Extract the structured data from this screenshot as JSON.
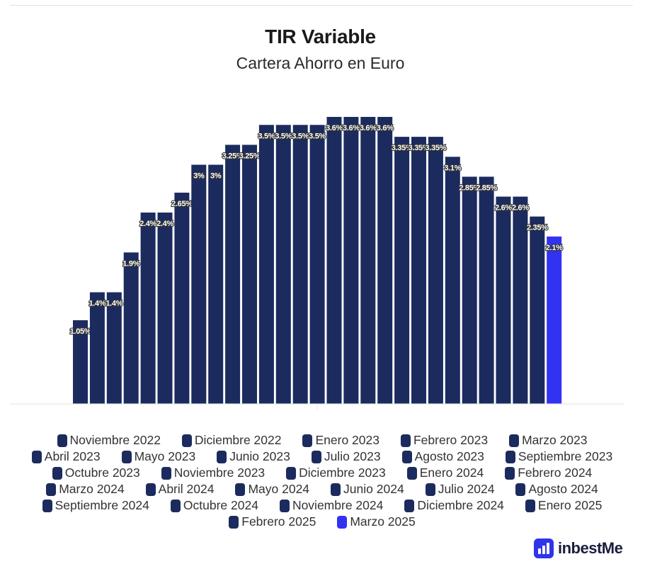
{
  "chart_data": {
    "type": "bar",
    "title": "TIR Variable",
    "subtitle": "Cartera Ahorro en Euro",
    "categories": [
      "Noviembre 2022",
      "Diciembre 2022",
      "Enero 2023",
      "Febrero 2023",
      "Marzo 2023",
      "Abril 2023",
      "Mayo 2023",
      "Junio 2023",
      "Julio 2023",
      "Agosto 2023",
      "Septiembre 2023",
      "Octubre 2023",
      "Noviembre 2023",
      "Diciembre 2023",
      "Enero 2024",
      "Febrero 2024",
      "Marzo 2024",
      "Abril 2024",
      "Mayo 2024",
      "Junio 2024",
      "Julio 2024",
      "Agosto 2024",
      "Septiembre 2024",
      "Octubre 2024",
      "Noviembre 2024",
      "Diciembre 2024",
      "Enero 2025",
      "Febrero 2025",
      "Marzo 2025"
    ],
    "values": [
      1.05,
      1.4,
      1.4,
      1.9,
      2.4,
      2.4,
      2.65,
      3,
      3,
      3.25,
      3.25,
      3.5,
      3.5,
      3.5,
      3.5,
      3.6,
      3.6,
      3.6,
      3.6,
      3.35,
      3.35,
      3.35,
      3.1,
      2.85,
      2.85,
      2.6,
      2.6,
      2.35,
      2.1
    ],
    "data_labels": [
      "1.05%",
      "1.4%",
      "1.4%",
      "1.9%",
      "2.4%",
      "2.4%",
      "2.65%",
      "3%",
      "3%",
      "3.25%",
      "3.25%",
      "3.5%",
      "3.5%",
      "3.5%",
      "3.5%",
      "3.6%",
      "3.6%",
      "3.6%",
      "3.6%",
      "3.35%",
      "3.35%",
      "3.35%",
      "3.1%",
      "2.85%",
      "2.85%",
      "2.6%",
      "2.6%",
      "2.35%",
      "2.1%"
    ],
    "ylim": [
      0,
      3.6
    ],
    "grid": false,
    "legend_placement": "bottom",
    "colors": {
      "bar": "#1c2b5e",
      "highlight": "#3232f2"
    },
    "highlight_index": 28
  },
  "brand": {
    "logo_text": "inbestMe",
    "logo_color": "#2f35ea"
  }
}
